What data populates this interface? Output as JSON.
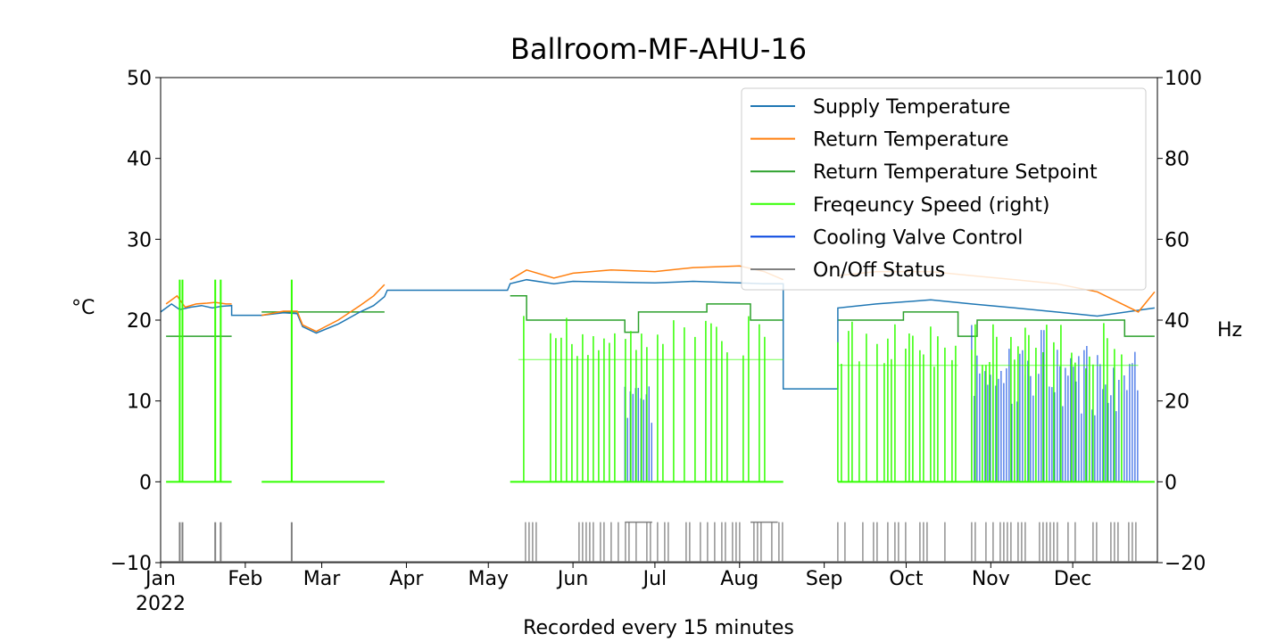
{
  "chart_data": {
    "type": "line",
    "title": "Ballroom-MF-AHU-16",
    "xlabel": "Recorded every 15 minutes",
    "ylabel_left": "°C",
    "ylabel_right": "Hz",
    "ylim_left": [
      -10,
      50
    ],
    "ylim_right": [
      -20,
      100
    ],
    "yticks_left": [
      -10,
      0,
      10,
      20,
      30,
      40,
      50
    ],
    "yticks_left_labels": [
      "−10",
      "0",
      "10",
      "20",
      "30",
      "40",
      "50"
    ],
    "yticks_right": [
      -20,
      0,
      20,
      40,
      60,
      80,
      100
    ],
    "yticks_right_labels": [
      "−20",
      "0",
      "20",
      "40",
      "60",
      "80",
      "100"
    ],
    "xlim": [
      "2022-01-01",
      "2022-12-31"
    ],
    "x_ticks": [
      {
        "date": "2022-01-01",
        "label": "Jan",
        "sublabel": "2022"
      },
      {
        "date": "2022-02-01",
        "label": "Feb"
      },
      {
        "date": "2022-03-01",
        "label": "Mar"
      },
      {
        "date": "2022-04-01",
        "label": "Apr"
      },
      {
        "date": "2022-05-01",
        "label": "May"
      },
      {
        "date": "2022-06-01",
        "label": "Jun"
      },
      {
        "date": "2022-07-01",
        "label": "Jul"
      },
      {
        "date": "2022-08-01",
        "label": "Aug"
      },
      {
        "date": "2022-09-01",
        "label": "Sep"
      },
      {
        "date": "2022-10-01",
        "label": "Oct"
      },
      {
        "date": "2022-11-01",
        "label": "Nov"
      },
      {
        "date": "2022-12-01",
        "label": "Dec"
      }
    ],
    "grid": false,
    "legend_position": "top-right",
    "series": [
      {
        "name": "Supply Temperature",
        "color": "#1f77b4",
        "axis": "left",
        "points": [
          [
            "2022-01-01",
            21.0
          ],
          [
            "2022-01-05",
            22.0
          ],
          [
            "2022-01-08",
            21.3
          ],
          [
            "2022-01-12",
            21.6
          ],
          [
            "2022-01-16",
            21.8
          ],
          [
            "2022-01-20",
            21.5
          ],
          [
            "2022-01-23",
            21.7
          ],
          [
            "2022-01-27",
            21.8
          ],
          [
            "2022-01-27",
            20.6
          ],
          [
            "2022-02-07",
            20.6
          ],
          [
            "2022-02-07",
            20.6
          ],
          [
            "2022-02-15",
            20.9
          ],
          [
            "2022-02-20",
            20.8
          ],
          [
            "2022-02-22",
            19.2
          ],
          [
            "2022-02-27",
            18.4
          ],
          [
            "2022-03-07",
            19.5
          ],
          [
            "2022-03-15",
            21.0
          ],
          [
            "2022-03-20",
            21.8
          ],
          [
            "2022-03-24",
            22.9
          ],
          [
            "2022-03-25",
            23.7
          ],
          [
            "2022-04-15",
            23.7
          ],
          [
            "2022-05-08",
            23.7
          ],
          [
            "2022-05-09",
            24.5
          ],
          [
            "2022-05-15",
            25.0
          ],
          [
            "2022-05-25",
            24.5
          ],
          [
            "2022-06-01",
            24.8
          ],
          [
            "2022-06-15",
            24.7
          ],
          [
            "2022-07-01",
            24.6
          ],
          [
            "2022-07-15",
            24.8
          ],
          [
            "2022-08-01",
            24.6
          ],
          [
            "2022-08-10",
            24.5
          ],
          [
            "2022-08-17",
            24.5
          ],
          [
            "2022-08-17",
            11.5
          ],
          [
            "2022-09-06",
            11.5
          ],
          [
            "2022-09-06",
            21.5
          ],
          [
            "2022-09-20",
            22.0
          ],
          [
            "2022-10-10",
            22.5
          ],
          [
            "2022-10-25",
            22.0
          ],
          [
            "2022-11-10",
            21.5
          ],
          [
            "2022-11-25",
            21.0
          ],
          [
            "2022-12-10",
            20.5
          ],
          [
            "2022-12-31",
            21.5
          ]
        ]
      },
      {
        "name": "Return Temperature",
        "color": "#ff7f0e",
        "axis": "left",
        "points": [
          [
            "2022-01-03",
            22.0
          ],
          [
            "2022-01-07",
            23.0
          ],
          [
            "2022-01-10",
            21.6
          ],
          [
            "2022-01-14",
            22.0
          ],
          [
            "2022-01-18",
            22.1
          ],
          [
            "2022-01-21",
            22.2
          ],
          [
            "2022-01-25",
            22.0
          ],
          [
            "2022-01-27",
            22.0
          ],
          [
            "2022-02-07",
            20.6
          ],
          [
            "2022-02-15",
            21.1
          ],
          [
            "2022-02-20",
            21.1
          ],
          [
            "2022-02-22",
            19.4
          ],
          [
            "2022-02-27",
            18.6
          ],
          [
            "2022-03-07",
            20.0
          ],
          [
            "2022-03-15",
            21.8
          ],
          [
            "2022-03-20",
            23.0
          ],
          [
            "2022-03-24",
            24.4
          ],
          [
            "2022-05-09",
            25.0
          ],
          [
            "2022-05-15",
            26.2
          ],
          [
            "2022-05-25",
            25.2
          ],
          [
            "2022-06-01",
            25.8
          ],
          [
            "2022-06-15",
            26.2
          ],
          [
            "2022-07-01",
            26.0
          ],
          [
            "2022-07-15",
            26.5
          ],
          [
            "2022-08-01",
            26.7
          ],
          [
            "2022-08-10",
            26.0
          ],
          [
            "2022-08-17",
            25.0
          ],
          [
            "2022-09-06",
            25.5
          ],
          [
            "2022-09-20",
            26.0
          ],
          [
            "2022-10-10",
            26.0
          ],
          [
            "2022-10-25",
            25.5
          ],
          [
            "2022-11-10",
            25.0
          ],
          [
            "2022-11-25",
            24.5
          ],
          [
            "2022-12-10",
            23.5
          ],
          [
            "2022-12-25",
            21.0
          ],
          [
            "2022-12-31",
            23.5
          ]
        ]
      },
      {
        "name": "Return Temperature Setpoint",
        "color": "#2ca02c",
        "axis": "left",
        "segments": [
          [
            [
              "2022-01-03",
              18
            ],
            [
              "2022-01-27",
              18
            ]
          ],
          [
            [
              "2022-02-07",
              21
            ],
            [
              "2022-03-24",
              21
            ]
          ],
          [
            [
              "2022-05-09",
              23
            ],
            [
              "2022-05-15",
              23
            ],
            [
              "2022-05-15",
              20
            ],
            [
              "2022-06-20",
              20
            ],
            [
              "2022-06-20",
              18.5
            ],
            [
              "2022-06-25",
              18.5
            ],
            [
              "2022-06-25",
              21
            ],
            [
              "2022-07-20",
              21
            ],
            [
              "2022-07-20",
              22
            ],
            [
              "2022-08-05",
              22
            ],
            [
              "2022-08-05",
              20
            ],
            [
              "2022-08-17",
              20
            ]
          ],
          [
            [
              "2022-09-06",
              20
            ],
            [
              "2022-09-30",
              20
            ],
            [
              "2022-09-30",
              21
            ],
            [
              "2022-10-20",
              21
            ],
            [
              "2022-10-20",
              18
            ],
            [
              "2022-10-27",
              18
            ],
            [
              "2022-10-27",
              20
            ],
            [
              "2022-12-20",
              20
            ],
            [
              "2022-12-20",
              18
            ],
            [
              "2022-12-31",
              18
            ]
          ]
        ]
      },
      {
        "name": "Freqeuncy Speed (right)",
        "color": "#32ff00",
        "axis": "right",
        "baseline": 0,
        "baseline_segments": [
          [
            "2022-01-03",
            "2022-01-27"
          ],
          [
            "2022-02-07",
            "2022-03-24"
          ],
          [
            "2022-05-09",
            "2022-08-17"
          ],
          [
            "2022-09-06",
            "2022-12-31"
          ]
        ],
        "spikes_level": 50,
        "spikes_dates": [
          "2022-01-08",
          "2022-01-09",
          "2022-01-21",
          "2022-01-23",
          "2022-02-18"
        ],
        "dense_blocks": [
          {
            "start": "2022-05-12",
            "end": "2022-08-17",
            "level": 42
          },
          {
            "start": "2022-09-06",
            "end": "2022-10-20",
            "level": 40
          },
          {
            "start": "2022-10-25",
            "end": "2022-12-25",
            "level": 40
          }
        ]
      },
      {
        "name": "Cooling Valve Control",
        "color": "#0343df",
        "axis": "left",
        "dense_blocks": [
          {
            "start": "2022-06-20",
            "end": "2022-06-30",
            "level": 12
          },
          {
            "start": "2022-10-25",
            "end": "2022-12-25",
            "level": 15
          }
        ]
      },
      {
        "name": "On/Off Status",
        "color": "#808080",
        "axis": "left",
        "baseline": -10,
        "on_level": -5,
        "pulse_dates": [
          "2022-01-08",
          "2022-01-09",
          "2022-01-21",
          "2022-01-23",
          "2022-02-18"
        ],
        "dense_blocks": [
          {
            "start": "2022-05-12",
            "end": "2022-08-17"
          },
          {
            "start": "2022-09-06",
            "end": "2022-10-20"
          },
          {
            "start": "2022-10-25",
            "end": "2022-12-25"
          }
        ],
        "on_periods": [
          [
            "2022-06-20",
            "2022-06-30"
          ],
          [
            "2022-08-05",
            "2022-08-15"
          ]
        ]
      }
    ]
  }
}
